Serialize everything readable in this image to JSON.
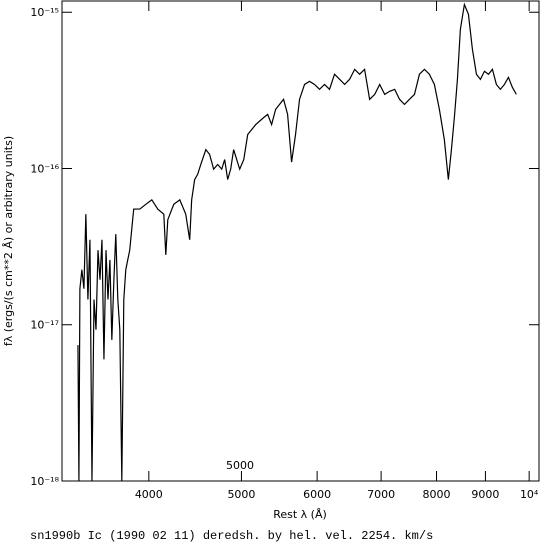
{
  "chart_data": {
    "type": "line",
    "title": "sn1990b Ic (1990 02 11) deredsh. by hel. vel.  2254. km/s",
    "x_label": "Rest λ (Å)",
    "y_label": "fλ (ergs/(s cm**2 Å) or arbitrary units)",
    "annotation": "5000",
    "x_log": true,
    "y_log": true,
    "grid": false,
    "xlim": [
      3245,
      10240
    ],
    "ylim": [
      1e-18,
      1.18e-15
    ],
    "xticks": [
      4000,
      5000,
      6000,
      7000,
      8000,
      9000,
      {
        "value": 10000,
        "label": "10⁴"
      }
    ],
    "yticks": [
      {
        "value": 1e-18,
        "label": "10⁻¹⁸"
      },
      {
        "value": 1e-17,
        "label": "10⁻¹⁷"
      },
      {
        "value": 1e-16,
        "label": "10⁻¹⁶"
      },
      {
        "value": 1e-15,
        "label": "10⁻¹⁵"
      }
    ],
    "x": [
      3372,
      3380,
      3388,
      3404,
      3421,
      3437,
      3454,
      3471,
      3488,
      3505,
      3522,
      3539,
      3556,
      3573,
      3590,
      3608,
      3625,
      3642,
      3659,
      3677,
      3694,
      3712,
      3730,
      3748,
      3766,
      3784,
      3802,
      3820,
      3857,
      3914,
      3971,
      4029,
      4087,
      4147,
      4167,
      4187,
      4248,
      4310,
      4372,
      4414,
      4435,
      4467,
      4500,
      4533,
      4589,
      4631,
      4676,
      4722,
      4768,
      4802,
      4837,
      4872,
      4907,
      4979,
      5028,
      5076,
      5175,
      5276,
      5326,
      5377,
      5429,
      5481,
      5534,
      5588,
      5642,
      5696,
      5751,
      5821,
      5891,
      5963,
      6035,
      6108,
      6182,
      6257,
      6334,
      6411,
      6488,
      6568,
      6647,
      6727,
      6809,
      6893,
      6976,
      7061,
      7146,
      7233,
      7318,
      7406,
      7495,
      7586,
      7677,
      7770,
      7863,
      7959,
      8055,
      8152,
      8231,
      8292,
      8351,
      8413,
      8473,
      8555,
      8639,
      8722,
      8807,
      8892,
      8979,
      9066,
      9153,
      9241,
      9331,
      9421,
      9513,
      9605,
      9696
    ],
    "series": [
      {
        "color": "#000000",
        "values": [
          7.4e-18,
          1e-18,
          1.7e-17,
          2.25e-17,
          1.7e-17,
          5.1e-17,
          1.45e-17,
          3.5e-17,
          1e-18,
          1.45e-17,
          9.3e-18,
          3e-17,
          1.94e-17,
          3.5e-17,
          6e-18,
          3e-17,
          1.45e-17,
          2.6e-17,
          8e-18,
          1.94e-17,
          3.8e-17,
          1.45e-17,
          9.3e-18,
          1e-18,
          1.45e-17,
          2.25e-17,
          2.6e-17,
          3e-17,
          5.5e-17,
          5.5e-17,
          5.9e-17,
          6.3e-17,
          5.5e-17,
          5.1e-17,
          2.8e-17,
          4.7e-17,
          5.9e-17,
          6.3e-17,
          5.1e-17,
          3.5e-17,
          6.3e-17,
          8.5e-17,
          9.2e-17,
          1.06e-16,
          1.32e-16,
          1.23e-16,
          9.9e-17,
          1.06e-16,
          9.9e-17,
          1.14e-16,
          8.5e-17,
          9.9e-17,
          1.32e-16,
          9.9e-17,
          1.14e-16,
          1.65e-16,
          1.91e-16,
          2.12e-16,
          2.22e-16,
          1.91e-16,
          2.39e-16,
          2.57e-16,
          2.77e-16,
          2.22e-16,
          1.1e-16,
          1.65e-16,
          2.77e-16,
          3.45e-16,
          3.61e-16,
          3.45e-16,
          3.21e-16,
          3.45e-16,
          3.21e-16,
          4.01e-16,
          3.72e-16,
          3.45e-16,
          3.72e-16,
          4.31e-16,
          4.01e-16,
          4.31e-16,
          2.77e-16,
          2.98e-16,
          3.45e-16,
          2.98e-16,
          3.12e-16,
          3.21e-16,
          2.77e-16,
          2.57e-16,
          2.77e-16,
          2.98e-16,
          4.01e-16,
          4.31e-16,
          4.01e-16,
          3.45e-16,
          2.39e-16,
          1.53e-16,
          8.5e-17,
          1.32e-16,
          2.12e-16,
          3.72e-16,
          7.78e-16,
          1.12e-15,
          9.7e-16,
          5.8e-16,
          4.01e-16,
          3.72e-16,
          4.19e-16,
          4.01e-16,
          4.31e-16,
          3.45e-16,
          3.21e-16,
          3.45e-16,
          3.83e-16,
          3.3e-16,
          2.98e-16
        ]
      }
    ]
  }
}
